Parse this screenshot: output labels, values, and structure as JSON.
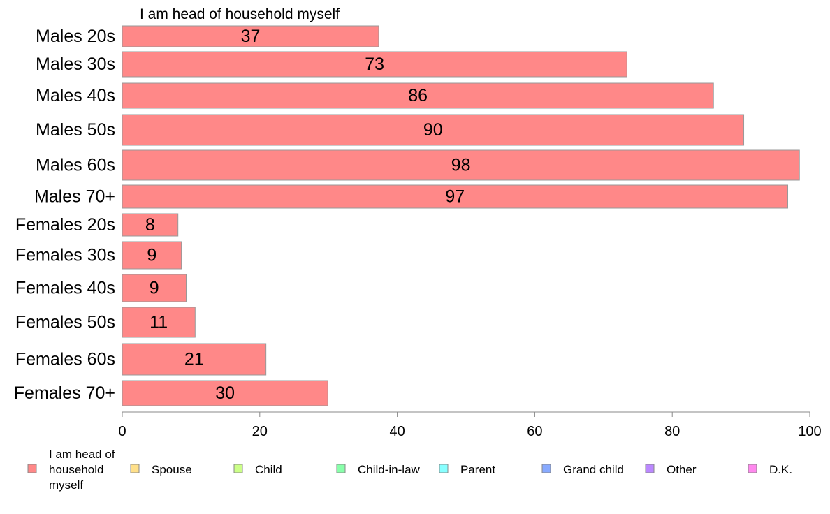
{
  "chart_data": {
    "type": "bar",
    "orientation": "horizontal",
    "stacked": true,
    "series_title": "I am head of household myself",
    "categories": [
      "Males 20s",
      "Males 30s",
      "Males 40s",
      "Males 50s",
      "Males 60s",
      "Males 70+",
      "Females 20s",
      "Females 30s",
      "Females 40s",
      "Females 50s",
      "Females 60s",
      "Females 70+"
    ],
    "series": [
      {
        "name": "I am head of household myself",
        "color": "#ff8888",
        "values": [
          37.3,
          73.4,
          86.0,
          90.4,
          98.5,
          96.8,
          8.1,
          8.6,
          9.3,
          10.6,
          20.9,
          29.9
        ]
      }
    ],
    "value_labels": [
      "37",
      "73",
      "86",
      "90",
      "98",
      "97",
      "8",
      "9",
      "9",
      "11",
      "21",
      "30"
    ],
    "xlim": [
      0,
      100
    ],
    "xticks": [
      0,
      20,
      40,
      60,
      80,
      100
    ],
    "xtick_labels": [
      "0",
      "20",
      "40",
      "60",
      "80",
      "100"
    ],
    "grid": false,
    "legend": {
      "position": "bottom",
      "entries": [
        {
          "label_lines": [
            "I am head of",
            "household",
            "myself"
          ],
          "color": "#ff8888"
        },
        {
          "label_lines": [
            "Spouse"
          ],
          "color": "#ffe08a"
        },
        {
          "label_lines": [
            "Child"
          ],
          "color": "#ccff88"
        },
        {
          "label_lines": [
            "Child-in-law"
          ],
          "color": "#88ffaa"
        },
        {
          "label_lines": [
            "Parent"
          ],
          "color": "#88ffff"
        },
        {
          "label_lines": [
            "Grand child"
          ],
          "color": "#88aaff"
        },
        {
          "label_lines": [
            "Other"
          ],
          "color": "#bb88ff"
        },
        {
          "label_lines": [
            "D.K."
          ],
          "color": "#ff88ee"
        }
      ]
    }
  }
}
